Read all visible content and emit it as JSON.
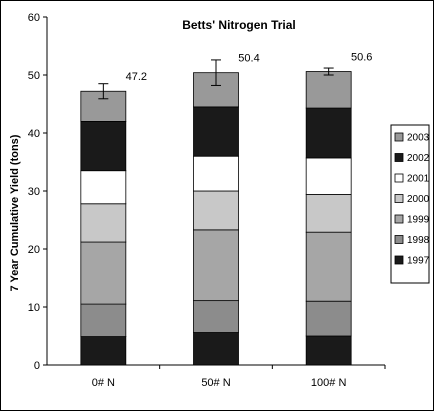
{
  "chart_data": {
    "type": "bar",
    "stacked": true,
    "title": "Betts' Nitrogen Trial",
    "xlabel": "",
    "ylabel": "7 Year Cumulative Yield (tons)",
    "ylim": [
      0,
      60
    ],
    "yticks": [
      "0",
      "10",
      "20",
      "30",
      "40",
      "50",
      "60"
    ],
    "categories": [
      "0# N",
      "50# N",
      "100# N"
    ],
    "series": [
      {
        "name": "1997",
        "color": "#1a1a1a",
        "values": [
          4.9,
          5.6,
          5.0
        ]
      },
      {
        "name": "1998",
        "color": "#8c8c8c",
        "values": [
          5.6,
          5.5,
          6.0
        ]
      },
      {
        "name": "1999",
        "color": "#a6a6a6",
        "values": [
          10.7,
          12.2,
          11.9
        ]
      },
      {
        "name": "2000",
        "color": "#c8c8c8",
        "values": [
          6.6,
          6.7,
          6.5
        ]
      },
      {
        "name": "2001",
        "color": "#ffffff",
        "values": [
          5.7,
          6.0,
          6.3
        ]
      },
      {
        "name": "2002",
        "color": "#1a1a1a",
        "values": [
          8.5,
          8.5,
          8.6
        ]
      },
      {
        "name": "2003",
        "color": "#999999",
        "values": [
          5.2,
          5.9,
          6.3
        ]
      }
    ],
    "totals": [
      47.2,
      50.4,
      50.6
    ],
    "total_labels": [
      "47.2",
      "50.4",
      "50.6"
    ],
    "error_bars": [
      1.3,
      2.2,
      0.6
    ],
    "grid": false,
    "legend": {
      "position": "right",
      "order": [
        "2003",
        "2002",
        "2001",
        "2000",
        "1999",
        "1998",
        "1997"
      ]
    }
  }
}
